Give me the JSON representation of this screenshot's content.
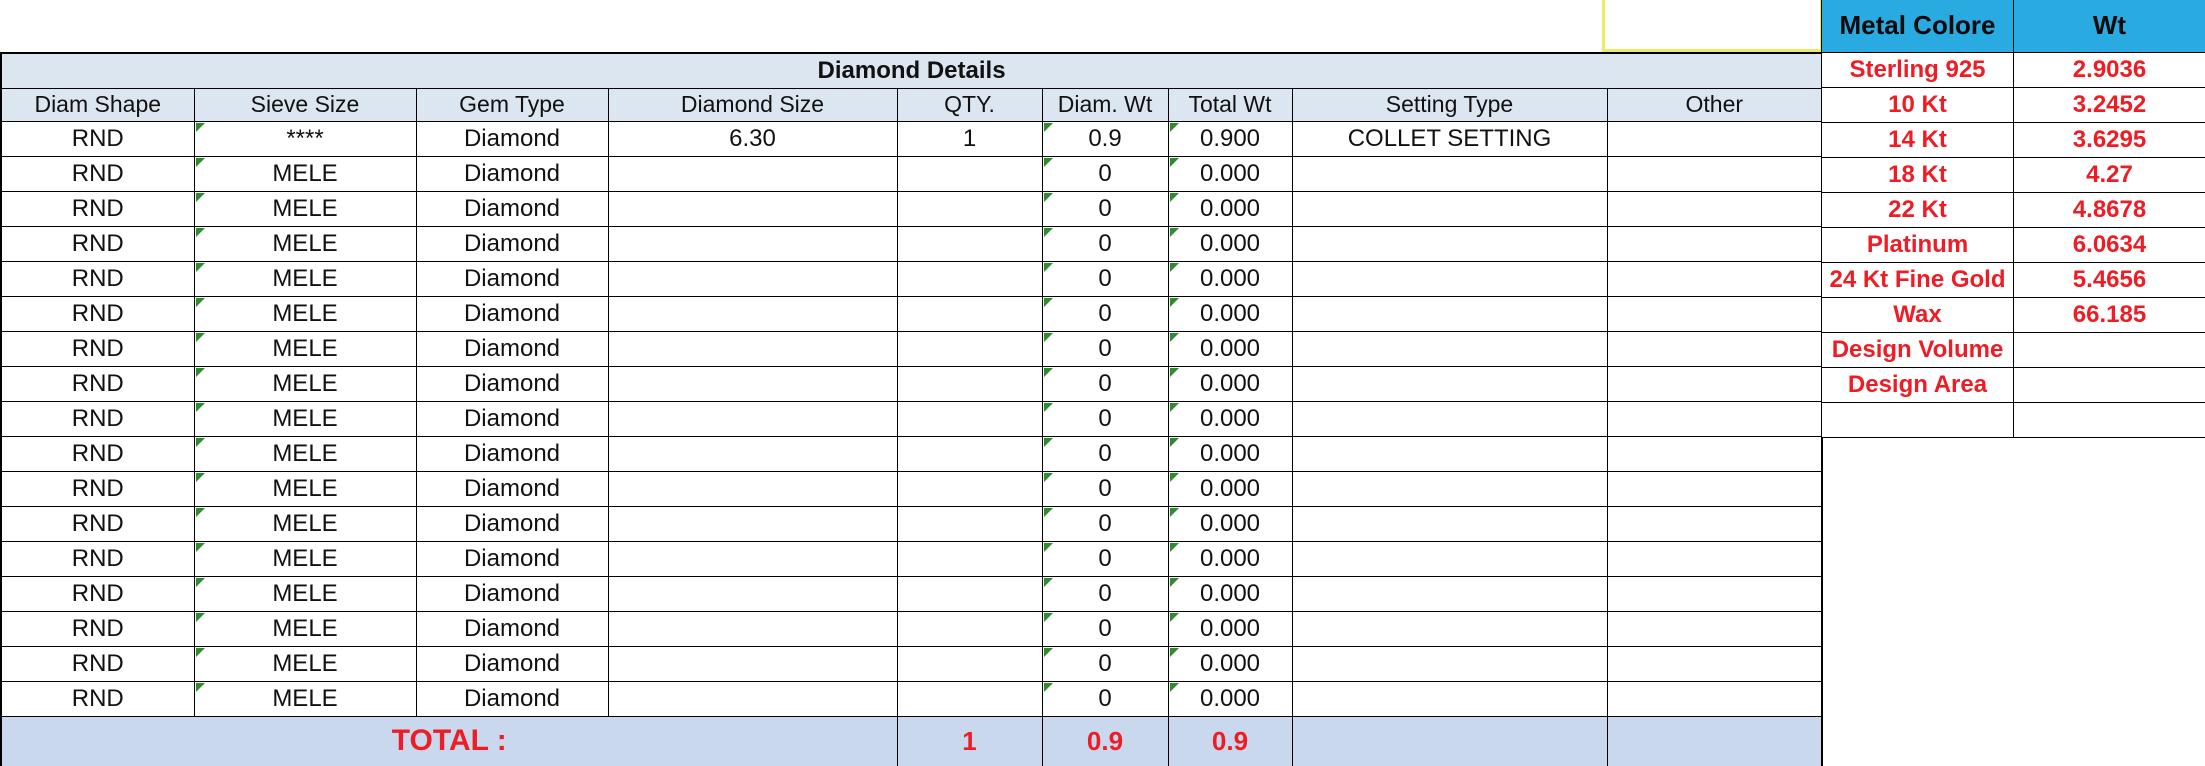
{
  "left_table": {
    "title": "Diamond Details",
    "columns": [
      "Diam Shape",
      "Sieve Size",
      "Gem Type",
      "Diamond Size",
      "QTY.",
      "Diam. Wt",
      "Total Wt",
      "Setting Type",
      "Other"
    ],
    "rows": [
      [
        "RND",
        "****",
        "Diamond",
        "6.30",
        "1",
        "0.9",
        "0.900",
        "COLLET SETTING",
        ""
      ],
      [
        "RND",
        "MELE",
        "Diamond",
        "",
        "",
        "0",
        "0.000",
        "",
        ""
      ],
      [
        "RND",
        "MELE",
        "Diamond",
        "",
        "",
        "0",
        "0.000",
        "",
        ""
      ],
      [
        "RND",
        "MELE",
        "Diamond",
        "",
        "",
        "0",
        "0.000",
        "",
        ""
      ],
      [
        "RND",
        "MELE",
        "Diamond",
        "",
        "",
        "0",
        "0.000",
        "",
        ""
      ],
      [
        "RND",
        "MELE",
        "Diamond",
        "",
        "",
        "0",
        "0.000",
        "",
        ""
      ],
      [
        "RND",
        "MELE",
        "Diamond",
        "",
        "",
        "0",
        "0.000",
        "",
        ""
      ],
      [
        "RND",
        "MELE",
        "Diamond",
        "",
        "",
        "0",
        "0.000",
        "",
        ""
      ],
      [
        "RND",
        "MELE",
        "Diamond",
        "",
        "",
        "0",
        "0.000",
        "",
        ""
      ],
      [
        "RND",
        "MELE",
        "Diamond",
        "",
        "",
        "0",
        "0.000",
        "",
        ""
      ],
      [
        "RND",
        "MELE",
        "Diamond",
        "",
        "",
        "0",
        "0.000",
        "",
        ""
      ],
      [
        "RND",
        "MELE",
        "Diamond",
        "",
        "",
        "0",
        "0.000",
        "",
        ""
      ],
      [
        "RND",
        "MELE",
        "Diamond",
        "",
        "",
        "0",
        "0.000",
        "",
        ""
      ],
      [
        "RND",
        "MELE",
        "Diamond",
        "",
        "",
        "0",
        "0.000",
        "",
        ""
      ],
      [
        "RND",
        "MELE",
        "Diamond",
        "",
        "",
        "0",
        "0.000",
        "",
        ""
      ],
      [
        "RND",
        "MELE",
        "Diamond",
        "",
        "",
        "0",
        "0.000",
        "",
        ""
      ],
      [
        "RND",
        "MELE",
        "Diamond",
        "",
        "",
        "0",
        "0.000",
        "",
        ""
      ]
    ],
    "total": {
      "label": "TOTAL :",
      "qty": "1",
      "diam_wt": "0.9",
      "total_wt": "0.9"
    }
  },
  "metal_table": {
    "columns": [
      "Metal Colore",
      "Wt"
    ],
    "rows": [
      [
        "Sterling 925",
        "2.9036"
      ],
      [
        "10 Kt",
        "3.2452"
      ],
      [
        "14 Kt",
        "3.6295"
      ],
      [
        "18 Kt",
        "4.27"
      ],
      [
        "22 Kt",
        "4.8678"
      ],
      [
        "Platinum",
        "6.0634"
      ],
      [
        "24 Kt Fine Gold",
        "5.4656"
      ],
      [
        "Wax",
        "66.185"
      ],
      [
        "Design Volume",
        ""
      ],
      [
        "Design Area",
        ""
      ],
      [
        "",
        ""
      ]
    ]
  },
  "colors": {
    "header_fill": "#dce6f1",
    "total_fill": "#c9d8ec",
    "metal_header_fill": "#29abe2",
    "accent_red": "#ee1c24",
    "triangle_green": "#2e8b2e",
    "selection_yellow": "#f0ea62",
    "border_black": "#000000"
  }
}
